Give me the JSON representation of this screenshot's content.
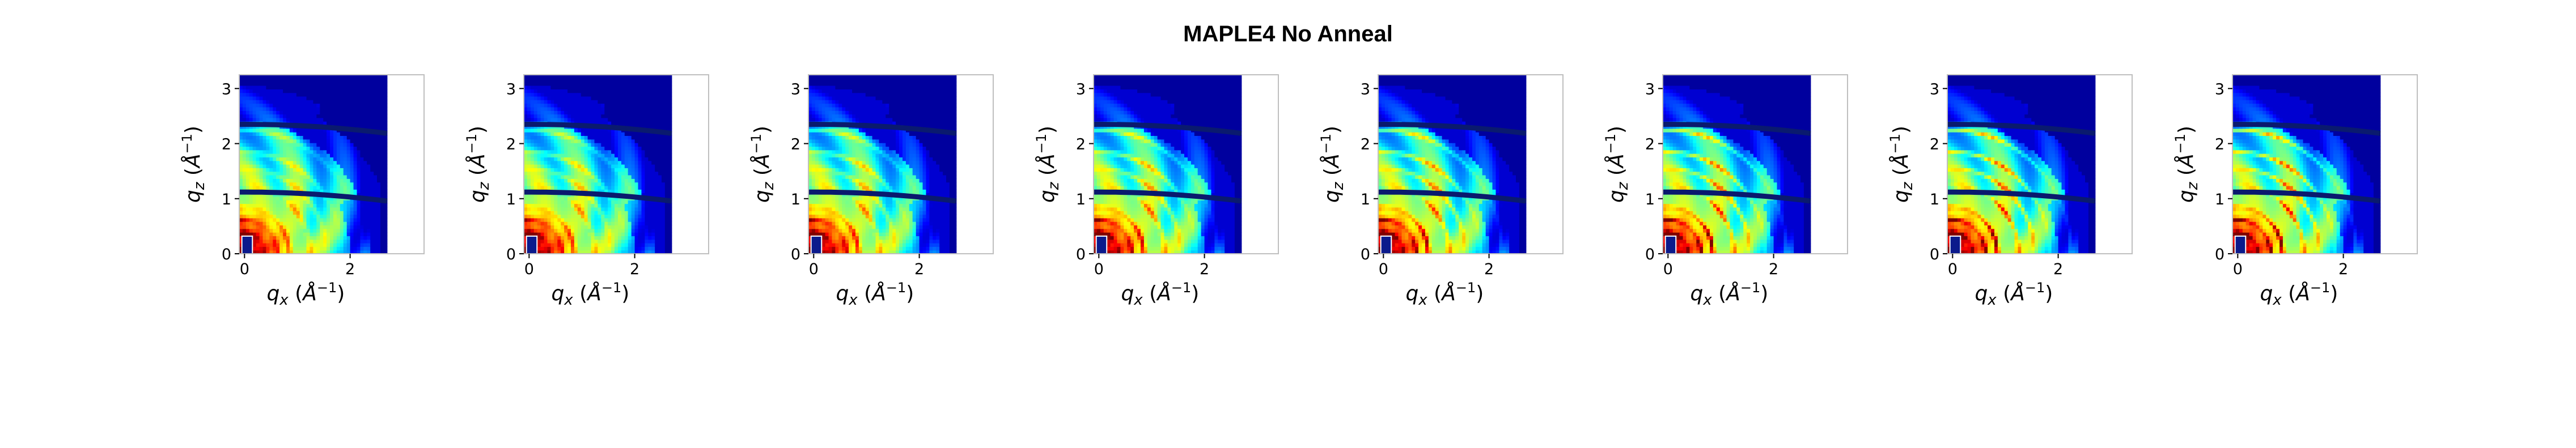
{
  "figure": {
    "title": "MAPLE4 No Anneal"
  },
  "chart_data": [
    {
      "type": "heatmap",
      "panel": 1,
      "xlabel": "q_x (Å^-1)",
      "ylabel": "q_z (Å^-1)",
      "xlim": [
        -0.1,
        3.4
      ],
      "ylim": [
        0,
        3.25
      ],
      "xticks": [
        0,
        2
      ],
      "yticks": [
        0,
        1,
        2,
        3
      ],
      "colormap": "jet",
      "image_extent_x": [
        -0.1,
        2.7
      ],
      "ring_contrast": 0.15
    },
    {
      "type": "heatmap",
      "panel": 2,
      "xlabel": "q_x (Å^-1)",
      "ylabel": "q_z (Å^-1)",
      "xlim": [
        -0.1,
        3.4
      ],
      "ylim": [
        0,
        3.25
      ],
      "xticks": [
        0,
        2
      ],
      "yticks": [
        0,
        1,
        2,
        3
      ],
      "colormap": "jet",
      "image_extent_x": [
        -0.1,
        2.7
      ],
      "ring_contrast": 0.25
    },
    {
      "type": "heatmap",
      "panel": 3,
      "xlabel": "q_x (Å^-1)",
      "ylabel": "q_z (Å^-1)",
      "xlim": [
        -0.1,
        3.4
      ],
      "ylim": [
        0,
        3.25
      ],
      "xticks": [
        0,
        2
      ],
      "yticks": [
        0,
        1,
        2,
        3
      ],
      "colormap": "jet",
      "image_extent_x": [
        -0.1,
        2.7
      ],
      "ring_contrast": 0.35
    },
    {
      "type": "heatmap",
      "panel": 4,
      "xlabel": "q_x (Å^-1)",
      "ylabel": "q_z (Å^-1)",
      "xlim": [
        -0.1,
        3.4
      ],
      "ylim": [
        0,
        3.25
      ],
      "xticks": [
        0,
        2
      ],
      "yticks": [
        0,
        1,
        2,
        3
      ],
      "colormap": "jet",
      "image_extent_x": [
        -0.1,
        2.7
      ],
      "ring_contrast": 0.5
    },
    {
      "type": "heatmap",
      "panel": 5,
      "xlabel": "q_x (Å^-1)",
      "ylabel": "q_z (Å^-1)",
      "xlim": [
        -0.1,
        3.4
      ],
      "ylim": [
        0,
        3.25
      ],
      "xticks": [
        0,
        2
      ],
      "yticks": [
        0,
        1,
        2,
        3
      ],
      "colormap": "jet",
      "image_extent_x": [
        -0.1,
        2.7
      ],
      "ring_contrast": 0.65
    },
    {
      "type": "heatmap",
      "panel": 6,
      "xlabel": "q_x (Å^-1)",
      "ylabel": "q_z (Å^-1)",
      "xlim": [
        -0.1,
        3.4
      ],
      "ylim": [
        0,
        3.25
      ],
      "xticks": [
        0,
        2
      ],
      "yticks": [
        0,
        1,
        2,
        3
      ],
      "colormap": "jet",
      "image_extent_x": [
        -0.1,
        2.7
      ],
      "ring_contrast": 0.85
    },
    {
      "type": "heatmap",
      "panel": 7,
      "xlabel": "q_x (Å^-1)",
      "ylabel": "q_z (Å^-1)",
      "xlim": [
        -0.1,
        3.4
      ],
      "ylim": [
        0,
        3.25
      ],
      "xticks": [
        0,
        2
      ],
      "yticks": [
        0,
        1,
        2,
        3
      ],
      "colormap": "jet",
      "image_extent_x": [
        -0.1,
        2.7
      ],
      "ring_contrast": 0.9
    },
    {
      "type": "heatmap",
      "panel": 8,
      "xlabel": "q_x (Å^-1)",
      "ylabel": "q_z (Å^-1)",
      "xlim": [
        -0.1,
        3.4
      ],
      "ylim": [
        0,
        3.25
      ],
      "xticks": [
        0,
        2
      ],
      "yticks": [
        0,
        1,
        2,
        3
      ],
      "colormap": "jet",
      "image_extent_x": [
        -0.1,
        2.7
      ],
      "ring_contrast": 0.95
    }
  ]
}
